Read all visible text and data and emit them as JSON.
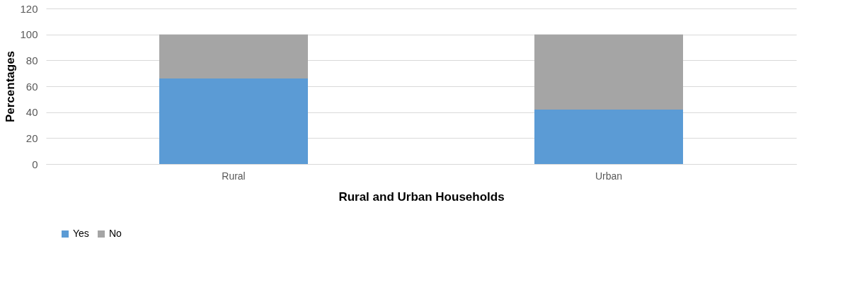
{
  "chart_data": {
    "type": "bar",
    "stacked": true,
    "xlabel": "Rural and Urban Households",
    "ylabel": "Percentages",
    "categories": [
      "Rural",
      "Urban"
    ],
    "series": [
      {
        "name": "Yes",
        "color": "#5b9bd5",
        "values": [
          66,
          42
        ]
      },
      {
        "name": "No",
        "color": "#a5a5a5",
        "values": [
          34,
          58
        ]
      }
    ],
    "ylim": [
      0,
      120
    ],
    "yticks": [
      0,
      20,
      40,
      60,
      80,
      100,
      120
    ],
    "grid": "y",
    "legend": "bottom"
  }
}
